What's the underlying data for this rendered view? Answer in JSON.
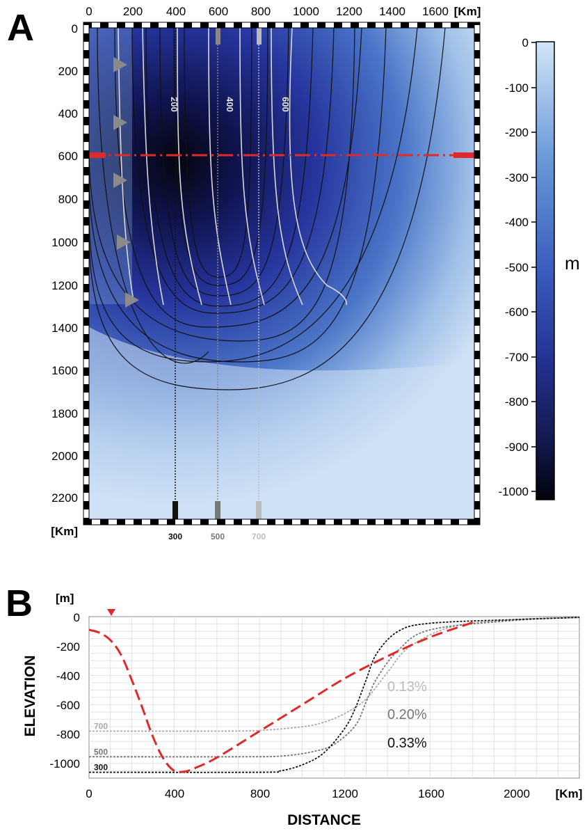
{
  "panel_a": {
    "letter": "A",
    "x_unit": "[Km]",
    "y_unit": "[Km]",
    "x_ticks": [
      "0",
      "200",
      "400",
      "600",
      "800",
      "1000",
      "1200",
      "1400",
      "1600"
    ],
    "y_ticks": [
      "0",
      "200",
      "400",
      "600",
      "800",
      "1000",
      "1200",
      "1400",
      "1600",
      "1800",
      "2000",
      "2200"
    ],
    "contour_labels": [
      "200",
      "400",
      "600"
    ],
    "profile_labels": [
      "300",
      "500",
      "700"
    ],
    "colorbar_ticks": [
      "0",
      "-100",
      "-200",
      "-300",
      "-400",
      "-500",
      "-600",
      "-700",
      "-800",
      "-900",
      "-1000"
    ],
    "colorbar_unit": "m",
    "colors": {
      "deep": "#0a0a1a",
      "mid": "#24339a",
      "shallow": "#c7dcf3",
      "red_line": "#e02a2a"
    }
  },
  "panel_b": {
    "letter": "B",
    "y_unit": "[m]",
    "x_unit": "[Km]",
    "xlabel": "DISTANCE",
    "ylabel": "ELEVATION",
    "x_ticks": [
      "0",
      "400",
      "800",
      "1200",
      "1600",
      "2000"
    ],
    "y_ticks": [
      "0",
      "-200",
      "-400",
      "-600",
      "-800",
      "-1000"
    ],
    "curve_labels": [
      "700",
      "500",
      "300"
    ],
    "slope_labels": [
      "0.13%",
      "0.20%",
      "0.33%"
    ],
    "colors": {
      "c700": "#aaaaaa",
      "c500": "#777777",
      "c300": "#111111",
      "red": "#e02a2a"
    }
  },
  "chart_data": [
    {
      "type": "heatmap",
      "title": "",
      "xlabel": "[Km]",
      "ylabel": "[Km]",
      "xlim": [
        0,
        1700
      ],
      "ylim": [
        0,
        2300
      ],
      "color_range": [
        0,
        -1000
      ],
      "color_unit": "m",
      "contour_labels": [
        200,
        400,
        600
      ],
      "profile_lines_x": [
        400,
        600,
        800
      ],
      "profile_line_labels": [
        300,
        500,
        700
      ],
      "cross_section_y": 600
    },
    {
      "type": "line",
      "title": "",
      "xlabel": "DISTANCE",
      "ylabel": "ELEVATION",
      "xlim": [
        0,
        2300
      ],
      "ylim": [
        -1100,
        0
      ],
      "grid": true,
      "series": [
        {
          "name": "700",
          "x": [
            0,
            600,
            800,
            1000,
            1100,
            1200,
            1300,
            1400,
            1500,
            1700,
            2000,
            2300
          ],
          "y": [
            -780,
            -780,
            -775,
            -750,
            -720,
            -660,
            -560,
            -380,
            -210,
            -70,
            -20,
            -5
          ]
        },
        {
          "name": "500",
          "x": [
            0,
            700,
            900,
            1050,
            1150,
            1250,
            1300,
            1350,
            1450,
            1600,
            2000,
            2300
          ],
          "y": [
            -955,
            -955,
            -950,
            -920,
            -870,
            -740,
            -580,
            -420,
            -230,
            -90,
            -25,
            -5
          ]
        },
        {
          "name": "300",
          "x": [
            0,
            800,
            900,
            1000,
            1100,
            1200,
            1250,
            1300,
            1350,
            1450,
            1600,
            2000,
            2300
          ],
          "y": [
            -1060,
            -1060,
            -1050,
            -1010,
            -930,
            -760,
            -620,
            -430,
            -250,
            -100,
            -45,
            -20,
            -5
          ]
        },
        {
          "name": "",
          "x": [
            0,
            50,
            100,
            150,
            200,
            250,
            300,
            350,
            400,
            450,
            500,
            600,
            800,
            1000,
            1200,
            1400,
            1600,
            1800
          ],
          "y": [
            -90,
            -110,
            -160,
            -260,
            -430,
            -620,
            -820,
            -970,
            -1050,
            -1055,
            -1030,
            -960,
            -780,
            -600,
            -420,
            -270,
            -140,
            -40
          ]
        }
      ],
      "annotations": [
        "0.13%",
        "0.20%",
        "0.33%"
      ]
    }
  ]
}
